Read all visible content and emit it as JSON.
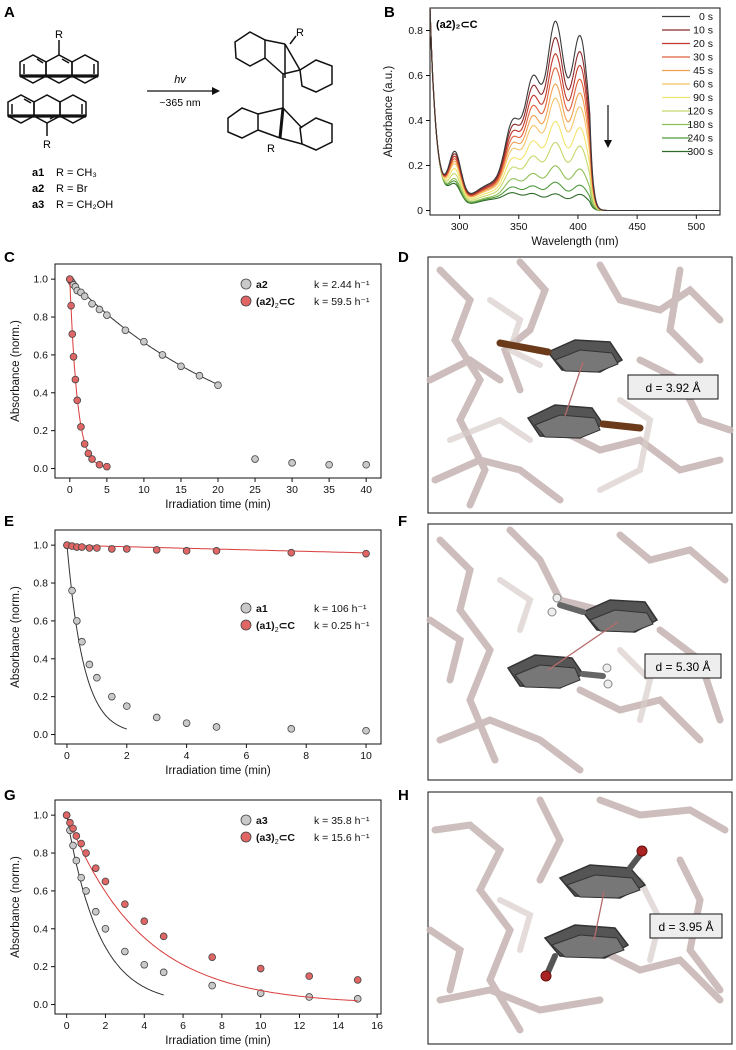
{
  "panels": {
    "A": {
      "label": "A",
      "arrow_top": "hv",
      "arrow_bottom": "~365 nm",
      "substituent": "R",
      "compounds": [
        {
          "id": "a1",
          "r": "R = CH₃"
        },
        {
          "id": "a2",
          "r": "R = Br"
        },
        {
          "id": "a3",
          "r": "R = CH₂OH"
        }
      ]
    },
    "B": {
      "label": "B",
      "title": "(a2)₂⊂C"
    },
    "C": {
      "label": "C"
    },
    "D": {
      "label": "D",
      "distance": "d = 3.92 Å"
    },
    "E": {
      "label": "E"
    },
    "F": {
      "label": "F",
      "distance": "d = 5.30 Å"
    },
    "G": {
      "label": "G"
    },
    "H": {
      "label": "H",
      "distance": "d = 3.95 Å"
    }
  },
  "colors": {
    "grey": "#c9c9c9",
    "red": "#e06666",
    "fit_grey": "#333333",
    "fit_red": "#d93b3b"
  },
  "chart_data": [
    {
      "id": "B",
      "type": "line",
      "xlabel": "Wavelength (nm)",
      "ylabel": "Absorbance (a.u.)",
      "xlim": [
        275,
        520
      ],
      "ylim": [
        -0.02,
        0.9
      ],
      "xticks": [
        300,
        350,
        400,
        450,
        500
      ],
      "yticks": [
        0,
        0.2,
        0.4,
        0.6,
        0.8
      ],
      "legend_position": "top-right",
      "peak_positions_nm": [
        345,
        362,
        381,
        402
      ],
      "series": [
        {
          "name": "0 s",
          "color": "#3a3a3a",
          "peaks": [
            0.29,
            0.53,
            0.81,
            0.76
          ],
          "shoulder": 0.22
        },
        {
          "name": "10 s",
          "color": "#8b2a2a",
          "peaks": [
            0.27,
            0.49,
            0.74,
            0.69
          ],
          "shoulder": 0.21
        },
        {
          "name": "20 s",
          "color": "#c0392b",
          "peaks": [
            0.25,
            0.45,
            0.67,
            0.63
          ],
          "shoulder": 0.2
        },
        {
          "name": "30 s",
          "color": "#e0603a",
          "peaks": [
            0.23,
            0.41,
            0.61,
            0.57
          ],
          "shoulder": 0.19
        },
        {
          "name": "45 s",
          "color": "#f0a050",
          "peaks": [
            0.21,
            0.37,
            0.54,
            0.51
          ],
          "shoulder": 0.18
        },
        {
          "name": "60 s",
          "color": "#f5c56a",
          "peaks": [
            0.19,
            0.33,
            0.48,
            0.45
          ],
          "shoulder": 0.17
        },
        {
          "name": "90 s",
          "color": "#f2e56e",
          "peaks": [
            0.16,
            0.27,
            0.38,
            0.36
          ],
          "shoulder": 0.15
        },
        {
          "name": "120 s",
          "color": "#c6d86a",
          "peaks": [
            0.13,
            0.21,
            0.29,
            0.28
          ],
          "shoulder": 0.13
        },
        {
          "name": "180 s",
          "color": "#8fbf55",
          "peaks": [
            0.09,
            0.14,
            0.19,
            0.18
          ],
          "shoulder": 0.11
        },
        {
          "name": "240 s",
          "color": "#4f9a3c",
          "peaks": [
            0.06,
            0.09,
            0.12,
            0.11
          ],
          "shoulder": 0.1
        },
        {
          "name": "300 s",
          "color": "#2f6b2a",
          "peaks": [
            0.04,
            0.06,
            0.07,
            0.07
          ],
          "shoulder": 0.09
        }
      ]
    },
    {
      "id": "C",
      "type": "scatter",
      "xlabel": "Irradiation time (min)",
      "ylabel": "Absorbance (norm.)",
      "xlim": [
        -2,
        42
      ],
      "ylim": [
        -0.05,
        1.08
      ],
      "xticks": [
        0,
        5,
        10,
        15,
        20,
        25,
        30,
        35,
        40
      ],
      "yticks": [
        0,
        0.2,
        0.4,
        0.6,
        0.8,
        1.0
      ],
      "legend_position": "top-right",
      "series": [
        {
          "name": "a2",
          "name_suffix": "",
          "k_label": "k = 2.44 h⁻¹",
          "k_per_min": 0.0407,
          "fit_to": 20,
          "style": "grey",
          "x": [
            0,
            0.17,
            0.33,
            0.5,
            0.75,
            1,
            1.5,
            2,
            3,
            4,
            5,
            7.5,
            10,
            12.5,
            15,
            17.5,
            20,
            25,
            30,
            35,
            40
          ],
          "y": [
            1.0,
            0.99,
            0.98,
            0.97,
            0.96,
            0.94,
            0.93,
            0.91,
            0.87,
            0.84,
            0.81,
            0.73,
            0.67,
            0.6,
            0.54,
            0.49,
            0.44,
            0.05,
            0.03,
            0.02,
            0.02
          ]
        },
        {
          "name": "(a2)",
          "name_suffix": "⊂C",
          "k_label": "k = 59.5 h⁻¹",
          "k_per_min": 0.992,
          "fit_to": 5,
          "style": "red",
          "x": [
            0,
            0.17,
            0.33,
            0.5,
            0.75,
            1,
            1.5,
            2,
            2.5,
            3,
            4,
            5
          ],
          "y": [
            1.0,
            0.86,
            0.71,
            0.59,
            0.47,
            0.36,
            0.22,
            0.13,
            0.08,
            0.05,
            0.02,
            0.01
          ]
        }
      ]
    },
    {
      "id": "E",
      "type": "scatter",
      "xlabel": "Irradiation time (min)",
      "ylabel": "Absorbance (norm.)",
      "xlim": [
        -0.4,
        10.5
      ],
      "ylim": [
        -0.05,
        1.08
      ],
      "xticks": [
        0,
        2,
        4,
        6,
        8,
        10
      ],
      "yticks": [
        0,
        0.2,
        0.4,
        0.6,
        0.8,
        1.0
      ],
      "legend_position": "center-right",
      "series": [
        {
          "name": "a1",
          "name_suffix": "",
          "k_label": "k = 106 h⁻¹",
          "k_per_min": 1.77,
          "fit_to": 2,
          "style": "grey",
          "x": [
            0,
            0.17,
            0.33,
            0.5,
            0.75,
            1,
            1.5,
            2,
            3,
            4,
            5,
            7.5,
            10
          ],
          "y": [
            1.0,
            0.76,
            0.6,
            0.49,
            0.37,
            0.3,
            0.2,
            0.15,
            0.09,
            0.06,
            0.04,
            0.03,
            0.02
          ]
        },
        {
          "name": "(a1)",
          "name_suffix": "⊂C",
          "k_label": "k = 0.25 h⁻¹",
          "k_per_min": 0.00417,
          "fit_to": 10,
          "style": "red",
          "x": [
            0,
            0.17,
            0.33,
            0.5,
            0.75,
            1,
            1.5,
            2,
            3,
            4,
            5,
            7.5,
            10
          ],
          "y": [
            1.0,
            0.995,
            0.99,
            0.99,
            0.985,
            0.985,
            0.98,
            0.98,
            0.975,
            0.97,
            0.97,
            0.96,
            0.955
          ]
        }
      ]
    },
    {
      "id": "G",
      "type": "scatter",
      "xlabel": "Irradiation time (min)",
      "ylabel": "Absorbance (norm.)",
      "xlim": [
        -0.6,
        16.2
      ],
      "ylim": [
        -0.05,
        1.08
      ],
      "xticks": [
        0,
        2,
        4,
        6,
        8,
        10,
        12,
        14,
        16
      ],
      "yticks": [
        0,
        0.2,
        0.4,
        0.6,
        0.8,
        1.0
      ],
      "legend_position": "top-right",
      "series": [
        {
          "name": "a3",
          "name_suffix": "",
          "k_label": "k = 35.8 h⁻¹",
          "k_per_min": 0.597,
          "fit_to": 5,
          "style": "grey",
          "x": [
            0,
            0.17,
            0.33,
            0.5,
            0.75,
            1,
            1.5,
            2,
            3,
            4,
            5,
            7.5,
            10,
            12.5,
            15
          ],
          "y": [
            1.0,
            0.92,
            0.84,
            0.76,
            0.67,
            0.6,
            0.49,
            0.4,
            0.28,
            0.21,
            0.17,
            0.1,
            0.06,
            0.04,
            0.03
          ]
        },
        {
          "name": "(a3)",
          "name_suffix": "⊂C",
          "k_label": "k = 15.6 h⁻¹",
          "k_per_min": 0.26,
          "fit_to": 15,
          "style": "red",
          "x": [
            0,
            0.17,
            0.33,
            0.5,
            0.75,
            1,
            1.5,
            2,
            3,
            4,
            5,
            7.5,
            10,
            12.5,
            15
          ],
          "y": [
            1.0,
            0.96,
            0.93,
            0.89,
            0.85,
            0.8,
            0.72,
            0.65,
            0.53,
            0.44,
            0.36,
            0.25,
            0.19,
            0.15,
            0.13
          ]
        }
      ]
    }
  ]
}
